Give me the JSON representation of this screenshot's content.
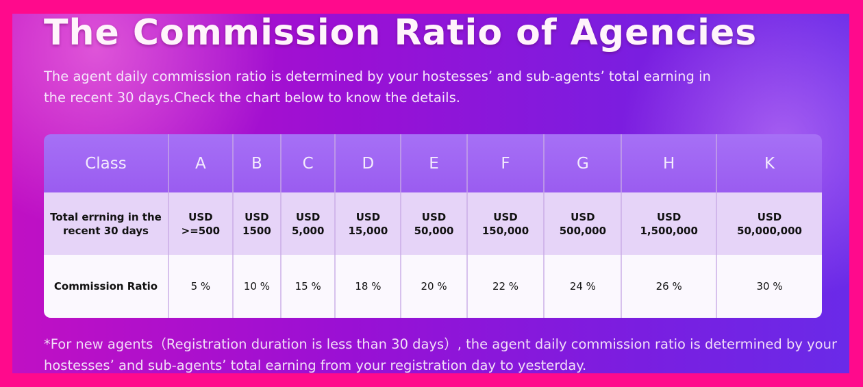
{
  "title": "The Commission Ratio of Agencies",
  "subtitle": "The agent daily commission ratio is determined by your  hostesses’ and sub-agents’ total earning in the recent 30 days.Check the chart below to know the details.",
  "table": {
    "header_label": "Class",
    "earning_label": "Total errning in the recent 30 days",
    "ratio_label": "Commission Ratio",
    "columns": [
      {
        "class": "A",
        "currency": "USD",
        "earning": ">=500",
        "ratio": "5 %"
      },
      {
        "class": "B",
        "currency": "USD",
        "earning": "1500",
        "ratio": "10 %"
      },
      {
        "class": "C",
        "currency": "USD",
        "earning": "5,000",
        "ratio": "15 %"
      },
      {
        "class": "D",
        "currency": "USD",
        "earning": "15,000",
        "ratio": "18 %"
      },
      {
        "class": "E",
        "currency": "USD",
        "earning": "50,000",
        "ratio": "20 %"
      },
      {
        "class": "F",
        "currency": "USD",
        "earning": "150,000",
        "ratio": "22 %"
      },
      {
        "class": "G",
        "currency": "USD",
        "earning": "500,000",
        "ratio": "24 %"
      },
      {
        "class": "H",
        "currency": "USD",
        "earning": "1,500,000",
        "ratio": "26 %"
      },
      {
        "class": "K",
        "currency": "USD",
        "earning": "50,000,000",
        "ratio": "30 %"
      }
    ]
  },
  "note": "*For new agents（Registration duration is less than 30 days）, the agent daily commission ratio is determined by your hostesses’ and sub-agents’ total earning from your registration day to yesterday.",
  "colors": {
    "border": "#ff0a8c",
    "header": "#a670f6",
    "earning_row": "#e6d4f8",
    "ratio_row": "#fbf8fe"
  }
}
